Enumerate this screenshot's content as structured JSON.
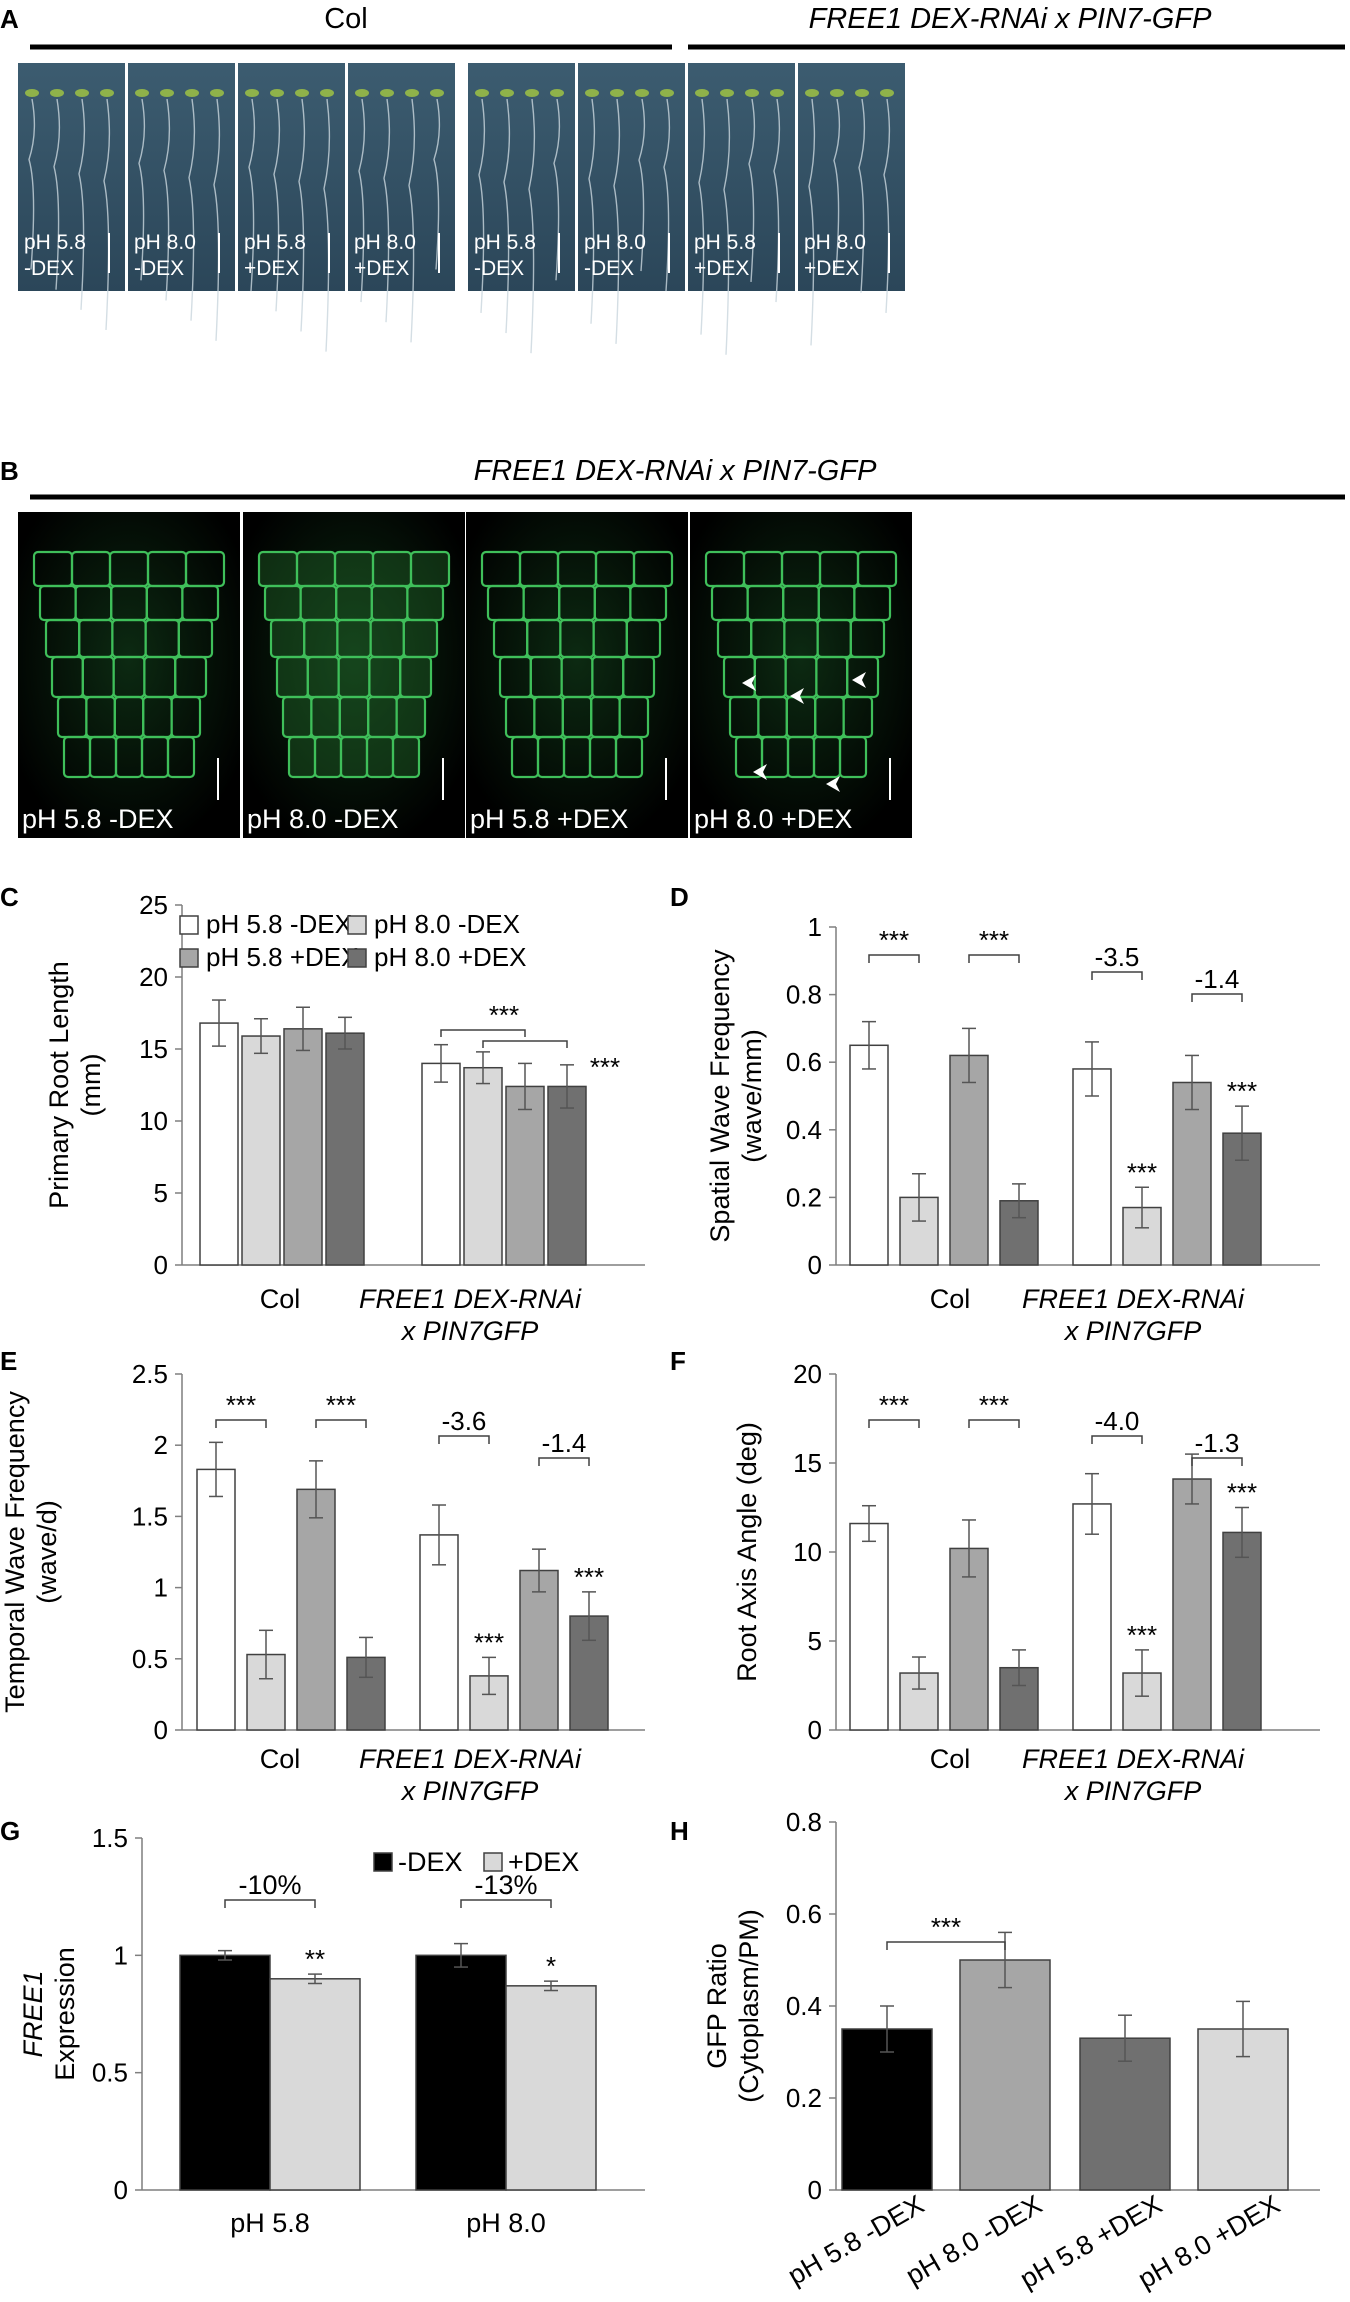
{
  "panel_letters": [
    "A",
    "B",
    "C",
    "D",
    "E",
    "F",
    "G",
    "H"
  ],
  "panel_a": {
    "groups": [
      "Col",
      "FREE1 DEX-RNAi x PIN7-GFP"
    ],
    "tiles": [
      [
        "pH 5.8",
        "-DEX"
      ],
      [
        "pH 8.0",
        "-DEX"
      ],
      [
        "pH 5.8",
        "+DEX"
      ],
      [
        "pH 8.0",
        "+DEX"
      ],
      [
        "pH 5.8",
        "-DEX"
      ],
      [
        "pH 8.0",
        "-DEX"
      ],
      [
        "pH 5.8",
        "+DEX"
      ],
      [
        "pH 8.0",
        "+DEX"
      ]
    ]
  },
  "panel_b": {
    "title": "FREE1 DEX-RNAi x PIN7-GFP",
    "tiles": [
      "pH 5.8 -DEX",
      "pH 8.0 -DEX",
      "pH 5.8 +DEX",
      "pH 8.0 +DEX"
    ]
  },
  "colors": {
    "white": "#ffffff",
    "light": "#d9d9d9",
    "mid": "#a6a6a6",
    "dark": "#707070",
    "black": "#000000",
    "err": "#555555"
  },
  "chart_data": [
    {
      "panel": "C",
      "type": "bar",
      "ylabel": [
        "Primary Root Length",
        "(mm)"
      ],
      "ylim": [
        0,
        25
      ],
      "yticks": [
        0,
        5,
        10,
        15,
        20,
        25
      ],
      "categories": [
        [
          "Col"
        ],
        [
          "FREE1 DEX-RNAi",
          "x PIN7GFP"
        ]
      ],
      "legend": [
        "pH 5.8 -DEX",
        "pH 8.0 -DEX",
        "pH 5.8 +DEX",
        "pH 8.0 +DEX"
      ],
      "series": [
        {
          "name": "pH 5.8 -DEX",
          "values": [
            16.8,
            14.0
          ],
          "err": [
            1.6,
            1.3
          ]
        },
        {
          "name": "pH 8.0 -DEX",
          "values": [
            15.9,
            13.7
          ],
          "err": [
            1.2,
            1.1
          ]
        },
        {
          "name": "pH 5.8 +DEX",
          "values": [
            16.4,
            12.4
          ],
          "err": [
            1.5,
            1.6
          ]
        },
        {
          "name": "pH 8.0 +DEX",
          "values": [
            16.1,
            12.4
          ],
          "err": [
            1.1,
            1.5
          ]
        }
      ],
      "annotations": [
        "***",
        "***"
      ]
    },
    {
      "panel": "D",
      "type": "bar",
      "ylabel": [
        "Spatial Wave Frequency",
        "(wave/mm)"
      ],
      "ylim": [
        0,
        1
      ],
      "yticks": [
        "0",
        "0.2",
        "0.4",
        "0.6",
        "0.8",
        "1"
      ],
      "categories": [
        [
          "Col"
        ],
        [
          "FREE1 DEX-RNAi",
          "x PIN7GFP"
        ]
      ],
      "series": [
        {
          "name": "pH 5.8 -DEX",
          "values": [
            0.65,
            0.58
          ],
          "err": [
            0.07,
            0.08
          ]
        },
        {
          "name": "pH 8.0 -DEX",
          "values": [
            0.2,
            0.17
          ],
          "err": [
            0.07,
            0.06
          ]
        },
        {
          "name": "pH 5.8 +DEX",
          "values": [
            0.62,
            0.54
          ],
          "err": [
            0.08,
            0.08
          ]
        },
        {
          "name": "pH 8.0 +DEX",
          "values": [
            0.19,
            0.39
          ],
          "err": [
            0.05,
            0.08
          ]
        }
      ],
      "annotations": [
        "***",
        "***",
        "-3.5",
        "-1.4",
        "***",
        "***"
      ]
    },
    {
      "panel": "E",
      "type": "bar",
      "ylabel": [
        "Temporal Wave Frequency",
        "(wave/d)"
      ],
      "ylim": [
        0,
        2.5
      ],
      "yticks": [
        "0",
        "0.5",
        "1",
        "1.5",
        "2",
        "2.5"
      ],
      "categories": [
        [
          "Col"
        ],
        [
          "FREE1 DEX-RNAi",
          "x PIN7GFP"
        ]
      ],
      "series": [
        {
          "name": "pH 5.8 -DEX",
          "values": [
            1.83,
            1.37
          ],
          "err": [
            0.19,
            0.21
          ]
        },
        {
          "name": "pH 8.0 -DEX",
          "values": [
            0.53,
            0.38
          ],
          "err": [
            0.17,
            0.13
          ]
        },
        {
          "name": "pH 5.8 +DEX",
          "values": [
            1.69,
            1.12
          ],
          "err": [
            0.2,
            0.15
          ]
        },
        {
          "name": "pH 8.0 +DEX",
          "values": [
            0.51,
            0.8
          ],
          "err": [
            0.14,
            0.17
          ]
        }
      ],
      "annotations": [
        "***",
        "***",
        "-3.6",
        "-1.4",
        "***",
        "***"
      ]
    },
    {
      "panel": "F",
      "type": "bar",
      "ylabel": [
        "Root Axis Angle (deg)"
      ],
      "ylim": [
        0,
        20
      ],
      "yticks": [
        "0",
        "5",
        "10",
        "15",
        "20"
      ],
      "categories": [
        [
          "Col"
        ],
        [
          "FREE1 DEX-RNAi",
          "x PIN7GFP"
        ]
      ],
      "series": [
        {
          "name": "pH 5.8 -DEX",
          "values": [
            11.6,
            12.7
          ],
          "err": [
            1.0,
            1.7
          ]
        },
        {
          "name": "pH 8.0 -DEX",
          "values": [
            3.2,
            3.2
          ],
          "err": [
            0.9,
            1.3
          ]
        },
        {
          "name": "pH 5.8 +DEX",
          "values": [
            10.2,
            14.1
          ],
          "err": [
            1.6,
            1.4
          ]
        },
        {
          "name": "pH 8.0 +DEX",
          "values": [
            3.5,
            11.1
          ],
          "err": [
            1.0,
            1.4
          ]
        }
      ],
      "annotations": [
        "***",
        "***",
        "-4.0",
        "-1.3",
        "***",
        "***"
      ]
    },
    {
      "panel": "G",
      "type": "bar",
      "ylabel": [
        "FREE1",
        "Expression"
      ],
      "ylim": [
        0,
        1.5
      ],
      "yticks": [
        "0",
        "0.5",
        "1",
        "1.5"
      ],
      "categories": [
        "pH 5.8",
        "pH 8.0"
      ],
      "legend": [
        "-DEX",
        "+DEX"
      ],
      "series": [
        {
          "name": "-DEX",
          "values": [
            1.0,
            1.0
          ],
          "err": [
            0.02,
            0.05
          ]
        },
        {
          "name": "+DEX",
          "values": [
            0.9,
            0.87
          ],
          "err": [
            0.02,
            0.02
          ]
        }
      ],
      "annotations": [
        "-10%",
        "**",
        "-13%",
        "*"
      ]
    },
    {
      "panel": "H",
      "type": "bar",
      "ylabel": [
        "GFP Ratio",
        "(Cytoplasm/PM)"
      ],
      "ylim": [
        0,
        0.8
      ],
      "yticks": [
        "0",
        "0.2",
        "0.4",
        "0.6",
        "0.8"
      ],
      "categories": [
        "pH 5.8 -DEX",
        "pH 8.0 -DEX",
        "pH 5.8 +DEX",
        "pH 8.0 +DEX"
      ],
      "series": [
        {
          "name": "GFP ratio",
          "values": [
            0.35,
            0.5,
            0.33,
            0.35
          ],
          "err": [
            0.05,
            0.06,
            0.05,
            0.06
          ]
        }
      ],
      "annotations": [
        "***"
      ]
    }
  ]
}
